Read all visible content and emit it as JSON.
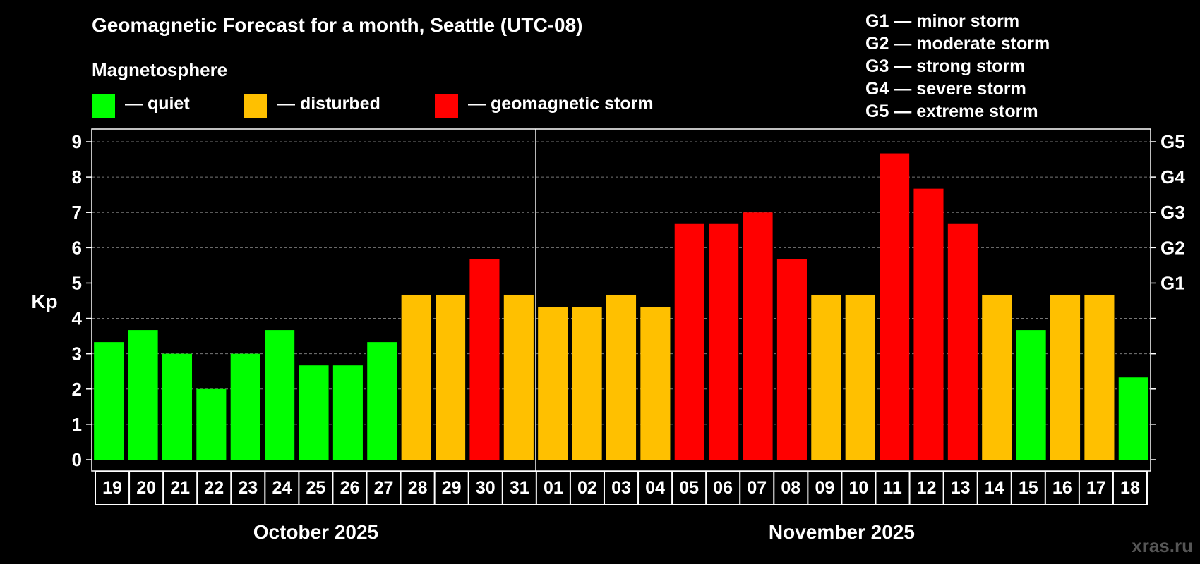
{
  "title": "Geomagnetic Forecast for a month, Seattle (UTC-08)",
  "legend": {
    "heading": "Magnetosphere",
    "items": [
      {
        "label": "— quiet",
        "color": "#00ff00"
      },
      {
        "label": "— disturbed",
        "color": "#ffc000"
      },
      {
        "label": "— geomagnetic storm",
        "color": "#ff0000"
      }
    ]
  },
  "storm_scale": [
    "G1 — minor storm",
    "G2 — moderate storm",
    "G3 — strong storm",
    "G4 — severe storm",
    "G5 — extreme storm"
  ],
  "watermark": "xras.ru",
  "chart_data": {
    "type": "bar",
    "ylabel": "Kp",
    "ylim": [
      0,
      9
    ],
    "yticks": [
      0,
      1,
      2,
      3,
      4,
      5,
      6,
      7,
      8,
      9
    ],
    "right_ticks": [
      {
        "value": 5,
        "label": "G1"
      },
      {
        "value": 6,
        "label": "G2"
      },
      {
        "value": 7,
        "label": "G3"
      },
      {
        "value": 8,
        "label": "G4"
      },
      {
        "value": 9,
        "label": "G5"
      }
    ],
    "grid": true,
    "categories": [
      "19",
      "20",
      "21",
      "22",
      "23",
      "24",
      "25",
      "26",
      "27",
      "28",
      "29",
      "30",
      "31",
      "01",
      "02",
      "03",
      "04",
      "05",
      "06",
      "07",
      "08",
      "09",
      "10",
      "11",
      "12",
      "13",
      "14",
      "15",
      "16",
      "17",
      "18"
    ],
    "values": [
      3.33,
      3.67,
      3.0,
      2.0,
      3.0,
      3.67,
      2.67,
      2.67,
      3.33,
      4.67,
      4.67,
      5.67,
      4.67,
      4.33,
      4.33,
      4.67,
      4.33,
      6.67,
      6.67,
      7.0,
      5.67,
      4.67,
      4.67,
      8.67,
      7.67,
      6.67,
      4.67,
      3.67,
      4.67,
      4.67,
      2.33
    ],
    "levels": [
      "quiet",
      "quiet",
      "quiet",
      "quiet",
      "quiet",
      "quiet",
      "quiet",
      "quiet",
      "quiet",
      "disturbed",
      "disturbed",
      "storm",
      "disturbed",
      "disturbed",
      "disturbed",
      "disturbed",
      "disturbed",
      "storm",
      "storm",
      "storm",
      "storm",
      "disturbed",
      "disturbed",
      "storm",
      "storm",
      "storm",
      "disturbed",
      "quiet",
      "disturbed",
      "disturbed",
      "quiet"
    ],
    "level_colors": {
      "quiet": "#00ff00",
      "disturbed": "#ffc000",
      "storm": "#ff0000"
    },
    "months": [
      {
        "label": "October 2025",
        "count": 13
      },
      {
        "label": "November 2025",
        "count": 18
      }
    ]
  }
}
